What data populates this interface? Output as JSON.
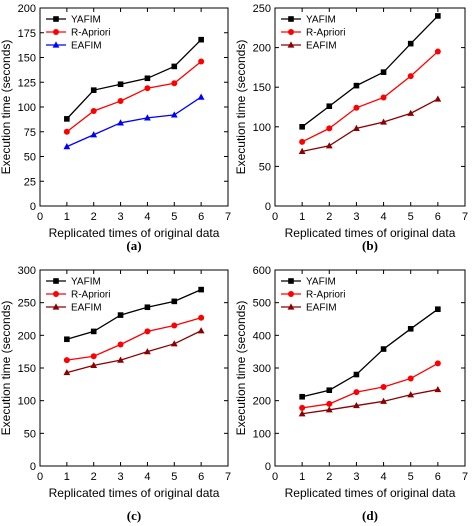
{
  "chart_data": [
    {
      "type": "line",
      "caption": "(a)",
      "xlabel": "Replicated times of original data",
      "ylabel": "Execution time (seconds)",
      "xlim": [
        0,
        7
      ],
      "ylim": [
        0,
        200
      ],
      "xticks": [
        0,
        1,
        2,
        3,
        4,
        5,
        6,
        7
      ],
      "yticks": [
        0,
        25,
        50,
        75,
        100,
        125,
        150,
        175,
        200
      ],
      "legend": "top-left",
      "x": [
        1,
        2,
        3,
        4,
        5,
        6
      ],
      "series": [
        {
          "name": "YAFIM",
          "marker": "square",
          "color": "#000000",
          "values": [
            88,
            117,
            123,
            129,
            141,
            168
          ]
        },
        {
          "name": "R-Apriori",
          "marker": "circle",
          "color": "#ff0000",
          "values": [
            75,
            96,
            106,
            119,
            124,
            146
          ]
        },
        {
          "name": "EAFIM",
          "marker": "triangle-up",
          "color": "#0000ff",
          "values": [
            60,
            72,
            84,
            89,
            92,
            110
          ]
        }
      ]
    },
    {
      "type": "line",
      "caption": "(b)",
      "xlabel": "Replicated times of original data",
      "ylabel": "Execution time (seconds)",
      "xlim": [
        0,
        7
      ],
      "ylim": [
        0,
        250
      ],
      "xticks": [
        0,
        1,
        2,
        3,
        4,
        5,
        6,
        7
      ],
      "yticks": [
        0,
        50,
        100,
        150,
        200,
        250
      ],
      "legend": "top-left",
      "x": [
        1,
        2,
        3,
        4,
        5,
        6
      ],
      "series": [
        {
          "name": "YAFIM",
          "marker": "square",
          "color": "#000000",
          "values": [
            100,
            126,
            152,
            169,
            205,
            240
          ]
        },
        {
          "name": "R-Apriori",
          "marker": "circle",
          "color": "#ff0000",
          "values": [
            81,
            98,
            124,
            137,
            164,
            195
          ]
        },
        {
          "name": "EAFIM",
          "marker": "triangle-up",
          "color": "#8b0000",
          "values": [
            69,
            76,
            98,
            106,
            117,
            135
          ]
        }
      ]
    },
    {
      "type": "line",
      "caption": "(c)",
      "xlabel": "Replicated times of original data",
      "ylabel": "Execution time (seconds)",
      "xlim": [
        0,
        7
      ],
      "ylim": [
        0,
        300
      ],
      "xticks": [
        0,
        1,
        2,
        3,
        4,
        5,
        6,
        7
      ],
      "yticks": [
        0,
        50,
        100,
        150,
        200,
        250,
        300
      ],
      "legend": "top-left",
      "x": [
        1,
        2,
        3,
        4,
        5,
        6
      ],
      "series": [
        {
          "name": "YAFIM",
          "marker": "square",
          "color": "#000000",
          "values": [
            194,
            206,
            231,
            243,
            252,
            270
          ]
        },
        {
          "name": "R-Apriori",
          "marker": "circle",
          "color": "#ff0000",
          "values": [
            162,
            168,
            186,
            206,
            215,
            227
          ]
        },
        {
          "name": "EAFIM",
          "marker": "triangle-up",
          "color": "#8b0000",
          "values": [
            143,
            154,
            162,
            175,
            187,
            207
          ]
        }
      ]
    },
    {
      "type": "line",
      "caption": "(d)",
      "xlabel": "Replicated times of original data",
      "ylabel": "Execution time (seconds)",
      "xlim": [
        0,
        7
      ],
      "ylim": [
        0,
        600
      ],
      "xticks": [
        0,
        1,
        2,
        3,
        4,
        5,
        6,
        7
      ],
      "yticks": [
        0,
        100,
        200,
        300,
        400,
        500,
        600
      ],
      "legend": "top-left",
      "x": [
        1,
        2,
        3,
        4,
        5,
        6
      ],
      "series": [
        {
          "name": "YAFIM",
          "marker": "square",
          "color": "#000000",
          "values": [
            212,
            232,
            280,
            358,
            420,
            480
          ]
        },
        {
          "name": "R-Apriori",
          "marker": "circle",
          "color": "#ff0000",
          "values": [
            178,
            190,
            226,
            242,
            268,
            314
          ]
        },
        {
          "name": "EAFIM",
          "marker": "triangle-up",
          "color": "#8b0000",
          "values": [
            160,
            172,
            185,
            198,
            218,
            234
          ]
        }
      ]
    }
  ]
}
